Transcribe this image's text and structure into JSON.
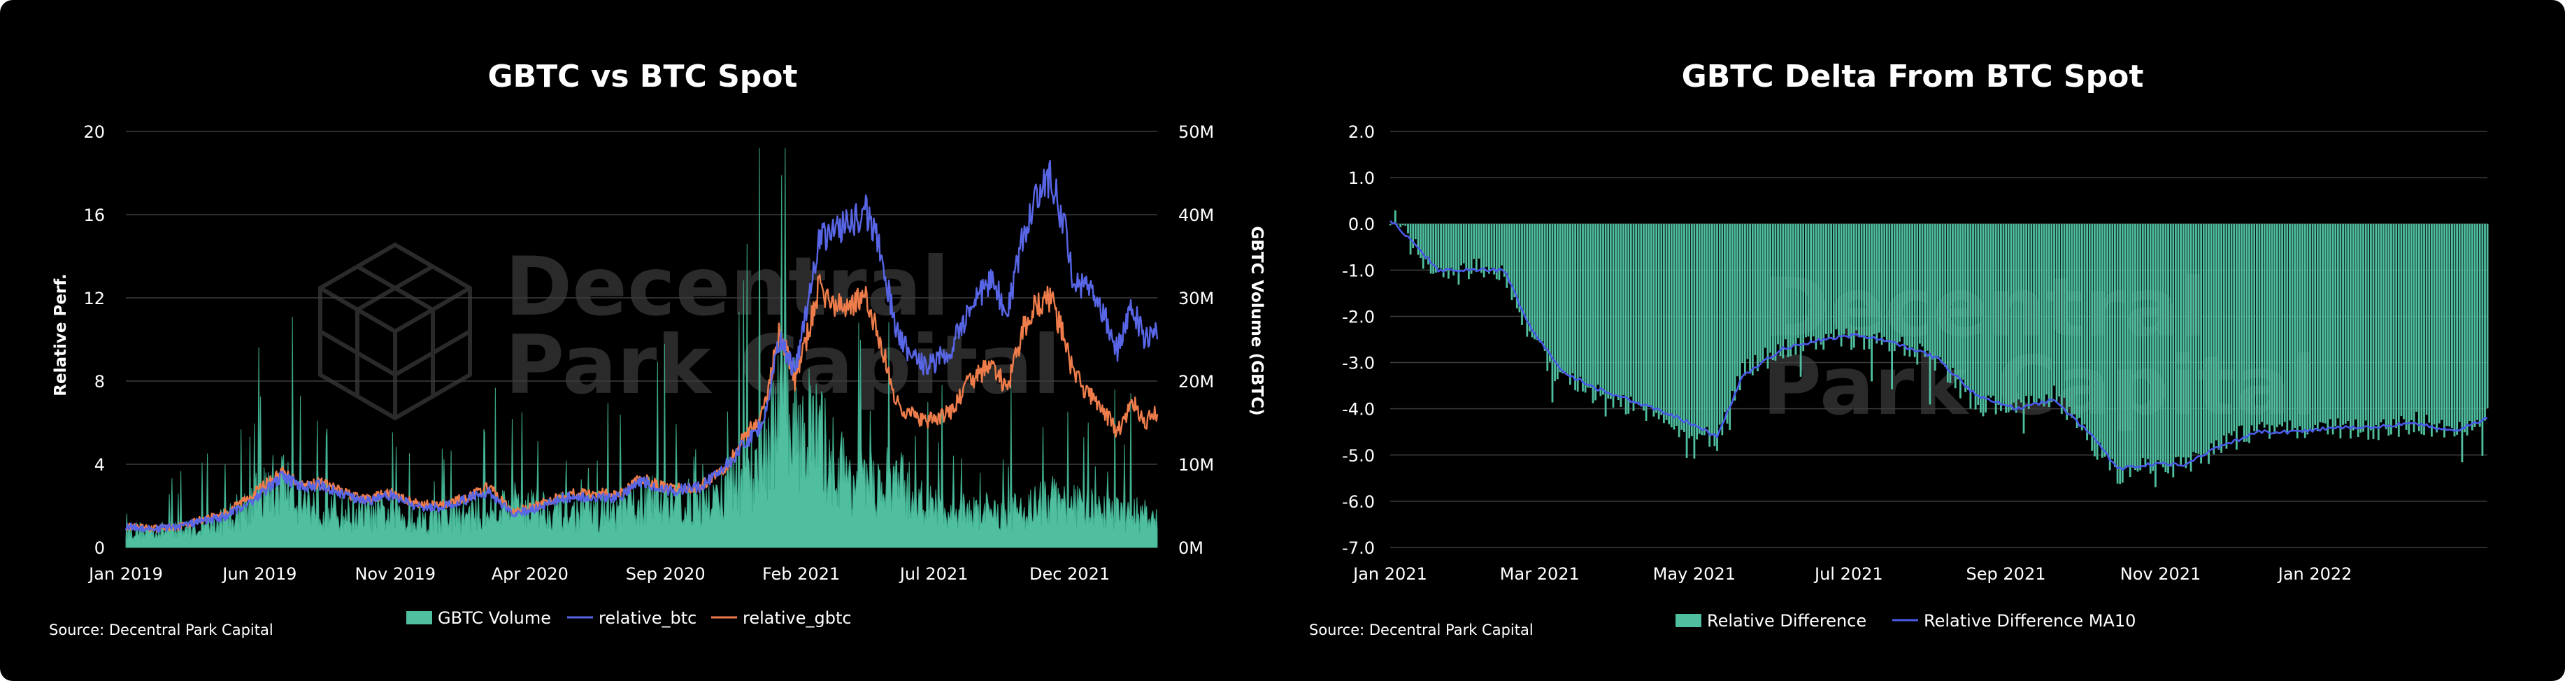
{
  "colors": {
    "background": "#000000",
    "volume": "#4fbf9f",
    "relative_btc": "#5866e6",
    "relative_gbtc": "#ee7d4b",
    "relative_difference": "#4fbf9f",
    "relative_difference_ma10": "#4a5ae8",
    "grid": "#3c3c3c",
    "watermark": "#2a2a2a"
  },
  "watermark": {
    "line1": "Decentral",
    "line2": "Park Capital",
    "icon": "cube-logo-icon"
  },
  "chart_data": [
    {
      "type": "line",
      "title": "GBTC vs BTC Spot",
      "ylabel": "Relative Perf.",
      "y2label": "GBTC Volume (GBTC)",
      "ylim": [
        0,
        20
      ],
      "y2lim": [
        0,
        50000000
      ],
      "yticks": [
        "0",
        "4",
        "8",
        "12",
        "16",
        "20"
      ],
      "y2ticks": [
        "0M",
        "10M",
        "20M",
        "30M",
        "40M",
        "50M"
      ],
      "xticks": [
        "Jan 2019",
        "Jun 2019",
        "Nov 2019",
        "Apr 2020",
        "Sep 2020",
        "Feb 2021",
        "Jul 2021",
        "Dec 2021"
      ],
      "xlim": [
        "2019-01-01",
        "2022-03-10"
      ],
      "grid": true,
      "legend_position": "bottom",
      "source": "Source: Decentral Park Capital",
      "series": [
        {
          "name": "GBTC Volume",
          "kind": "area",
          "axis": "right",
          "x": [
            "2019-01-01",
            "2019-03-01",
            "2019-04-15",
            "2019-05-15",
            "2019-06-10",
            "2019-06-26",
            "2019-07-20",
            "2019-09-01",
            "2019-10-15",
            "2019-11-15",
            "2019-12-20",
            "2020-02-15",
            "2020-03-12",
            "2020-04-15",
            "2020-05-15",
            "2020-07-01",
            "2020-08-10",
            "2020-09-01",
            "2020-10-15",
            "2020-11-15",
            "2020-12-15",
            "2021-01-08",
            "2021-02-10",
            "2021-03-15",
            "2021-04-15",
            "2021-05-19",
            "2021-06-15",
            "2021-07-15",
            "2021-08-15",
            "2021-09-15",
            "2021-10-15",
            "2021-11-15",
            "2021-12-15",
            "2022-01-15",
            "2022-02-15",
            "2022-03-10"
          ],
          "values": [
            2500000,
            2500000,
            3500000,
            6000000,
            8500000,
            10000000,
            7000000,
            5000000,
            5000000,
            4500000,
            4000000,
            5500000,
            6500000,
            6000000,
            5000000,
            5000000,
            7000000,
            7500000,
            6000000,
            9000000,
            13000000,
            20000000,
            18000000,
            12000000,
            9000000,
            10000000,
            7000000,
            5000000,
            5500000,
            5000000,
            6000000,
            7000000,
            6000000,
            5000000,
            5000000,
            4000000
          ]
        },
        {
          "name": "relative_btc",
          "axis": "left",
          "x": [
            "2019-01-01",
            "2019-02-01",
            "2019-03-01",
            "2019-04-01",
            "2019-04-25",
            "2019-05-25",
            "2019-06-26",
            "2019-07-20",
            "2019-08-10",
            "2019-09-01",
            "2019-09-26",
            "2019-10-27",
            "2019-11-25",
            "2019-12-20",
            "2020-01-20",
            "2020-02-15",
            "2020-03-12",
            "2020-04-10",
            "2020-05-10",
            "2020-06-10",
            "2020-07-10",
            "2020-08-05",
            "2020-09-05",
            "2020-10-10",
            "2020-11-10",
            "2020-12-01",
            "2020-12-20",
            "2021-01-08",
            "2021-01-25",
            "2021-02-10",
            "2021-02-21",
            "2021-03-13",
            "2021-04-14",
            "2021-05-01",
            "2021-05-19",
            "2021-06-01",
            "2021-06-22",
            "2021-07-20",
            "2021-08-10",
            "2021-09-06",
            "2021-09-21",
            "2021-10-10",
            "2021-10-20",
            "2021-11-10",
            "2021-11-25",
            "2021-12-04",
            "2021-12-20",
            "2022-01-10",
            "2022-01-24",
            "2022-02-10",
            "2022-02-24",
            "2022-03-10"
          ],
          "values": [
            1.0,
            0.9,
            1.0,
            1.3,
            1.5,
            2.3,
            3.4,
            2.9,
            3.0,
            2.6,
            2.2,
            2.5,
            2.0,
            1.9,
            2.3,
            2.7,
            1.6,
            1.9,
            2.4,
            2.4,
            2.4,
            3.2,
            2.7,
            2.9,
            4.0,
            5.1,
            6.0,
            10.0,
            8.5,
            12.0,
            15.0,
            15.2,
            16.2,
            14.5,
            10.5,
            9.5,
            8.6,
            9.5,
            11.5,
            13.0,
            11.0,
            15.0,
            16.5,
            17.8,
            15.5,
            13.0,
            12.5,
            11.0,
            9.5,
            11.5,
            10.0,
            10.5
          ]
        },
        {
          "name": "relative_gbtc",
          "axis": "left",
          "x": [
            "2019-01-01",
            "2019-02-01",
            "2019-03-01",
            "2019-04-01",
            "2019-04-25",
            "2019-05-25",
            "2019-06-26",
            "2019-07-20",
            "2019-08-10",
            "2019-09-01",
            "2019-09-26",
            "2019-10-27",
            "2019-11-25",
            "2019-12-20",
            "2020-01-20",
            "2020-02-15",
            "2020-03-12",
            "2020-04-10",
            "2020-05-10",
            "2020-06-10",
            "2020-07-10",
            "2020-08-05",
            "2020-09-05",
            "2020-10-10",
            "2020-11-10",
            "2020-12-01",
            "2020-12-20",
            "2021-01-08",
            "2021-01-25",
            "2021-02-10",
            "2021-02-21",
            "2021-03-13",
            "2021-04-14",
            "2021-05-01",
            "2021-05-19",
            "2021-06-01",
            "2021-06-22",
            "2021-07-20",
            "2021-08-10",
            "2021-09-06",
            "2021-09-21",
            "2021-10-10",
            "2021-10-20",
            "2021-11-10",
            "2021-11-25",
            "2021-12-04",
            "2021-12-20",
            "2022-01-10",
            "2022-01-24",
            "2022-02-10",
            "2022-02-24",
            "2022-03-10"
          ],
          "values": [
            1.0,
            0.9,
            1.0,
            1.4,
            1.7,
            2.6,
            3.6,
            3.0,
            3.1,
            2.7,
            2.3,
            2.6,
            2.1,
            2.0,
            2.4,
            2.9,
            1.7,
            2.0,
            2.6,
            2.6,
            2.6,
            3.3,
            2.8,
            2.9,
            4.0,
            5.5,
            6.4,
            10.5,
            8.0,
            10.5,
            12.5,
            11.5,
            12.0,
            10.0,
            7.0,
            6.5,
            6.0,
            6.5,
            8.0,
            8.8,
            7.5,
            10.5,
            11.5,
            12.0,
            10.0,
            8.5,
            7.5,
            6.5,
            5.5,
            7.0,
            6.0,
            6.5
          ]
        }
      ]
    },
    {
      "type": "bar",
      "title": "GBTC Delta From BTC Spot",
      "ylim": [
        -7.0,
        2.0
      ],
      "yticks": [
        "2.0",
        "1.0",
        "0.0",
        "-1.0",
        "-2.0",
        "-3.0",
        "-4.0",
        "-5.0",
        "-6.0",
        "-7.0"
      ],
      "xticks": [
        "Jan 2021",
        "Mar 2021",
        "May 2021",
        "Jul 2021",
        "Sep 2021",
        "Nov 2021",
        "Jan 2022"
      ],
      "xlim": [
        "2021-01-01",
        "2022-03-10"
      ],
      "grid": true,
      "legend_position": "bottom",
      "source": "Source: Decentral Park Capital",
      "series": [
        {
          "name": "Relative Difference",
          "kind": "bar",
          "x": [
            "2021-01-01",
            "2021-01-10",
            "2021-01-20",
            "2021-02-01",
            "2021-02-15",
            "2021-02-25",
            "2021-03-10",
            "2021-03-25",
            "2021-04-10",
            "2021-04-25",
            "2021-05-10",
            "2021-05-20",
            "2021-06-05",
            "2021-06-20",
            "2021-07-05",
            "2021-07-20",
            "2021-08-05",
            "2021-08-20",
            "2021-09-05",
            "2021-09-20",
            "2021-10-05",
            "2021-10-15",
            "2021-10-28",
            "2021-11-10",
            "2021-11-25",
            "2021-12-10",
            "2021-12-25",
            "2022-01-10",
            "2022-01-25",
            "2022-02-10",
            "2022-02-25",
            "2022-03-10"
          ],
          "values": [
            0.2,
            -0.5,
            -1.2,
            -1.0,
            -1.0,
            -2.4,
            -3.4,
            -3.7,
            -4.0,
            -4.4,
            -4.7,
            -3.2,
            -2.7,
            -2.5,
            -2.5,
            -2.6,
            -3.0,
            -3.9,
            -4.0,
            -3.7,
            -4.8,
            -5.4,
            -5.2,
            -5.3,
            -4.8,
            -4.4,
            -4.5,
            -4.4,
            -4.5,
            -4.3,
            -4.5,
            -4.2
          ]
        },
        {
          "name": "Relative Difference MA10",
          "kind": "line",
          "x": [
            "2021-01-01",
            "2021-01-10",
            "2021-01-20",
            "2021-02-01",
            "2021-02-15",
            "2021-02-25",
            "2021-03-10",
            "2021-03-25",
            "2021-04-10",
            "2021-04-25",
            "2021-05-10",
            "2021-05-20",
            "2021-06-05",
            "2021-06-20",
            "2021-07-05",
            "2021-07-20",
            "2021-08-05",
            "2021-08-20",
            "2021-09-05",
            "2021-09-20",
            "2021-10-05",
            "2021-10-15",
            "2021-10-28",
            "2021-11-10",
            "2021-11-25",
            "2021-12-10",
            "2021-12-25",
            "2022-01-10",
            "2022-01-25",
            "2022-02-10",
            "2022-02-25",
            "2022-03-10"
          ],
          "values": [
            0.1,
            -0.4,
            -1.0,
            -1.0,
            -1.0,
            -2.2,
            -3.2,
            -3.6,
            -3.9,
            -4.2,
            -4.6,
            -3.3,
            -2.7,
            -2.5,
            -2.4,
            -2.6,
            -2.9,
            -3.7,
            -4.0,
            -3.8,
            -4.6,
            -5.3,
            -5.2,
            -5.2,
            -4.8,
            -4.5,
            -4.5,
            -4.4,
            -4.4,
            -4.3,
            -4.5,
            -4.2
          ]
        }
      ]
    }
  ]
}
